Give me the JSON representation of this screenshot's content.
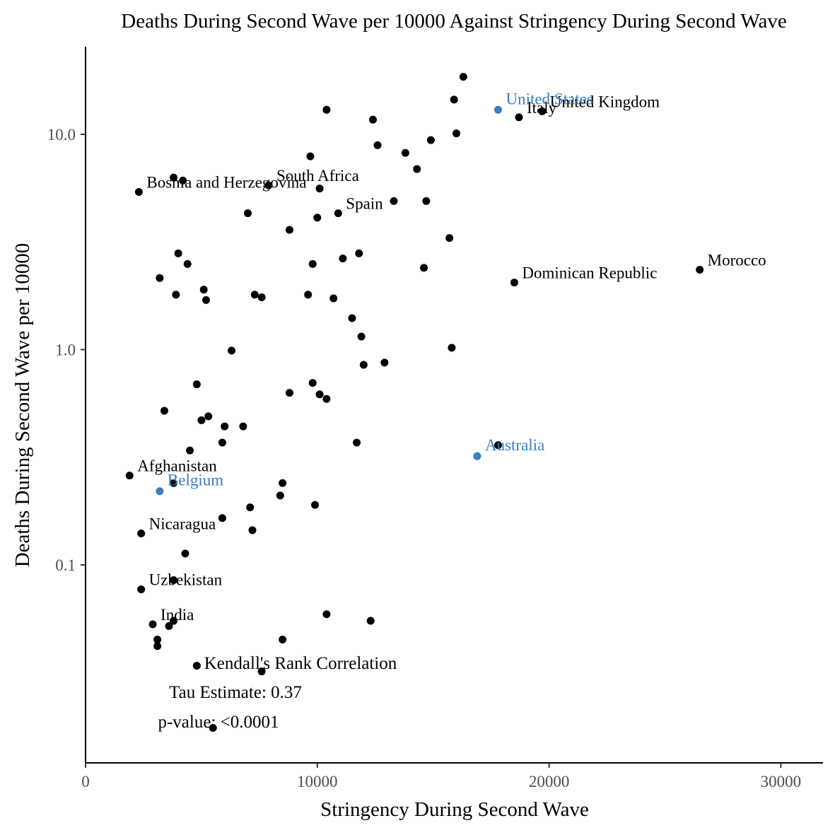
{
  "chart_data": {
    "type": "scatter",
    "title": "Deaths During Second Wave per 10000 Against Stringency During Second Wave",
    "xlabel": "Stringency During Second Wave",
    "ylabel": "Deaths During Second Wave per 10000",
    "x_scale": "linear",
    "y_scale": "log10",
    "xlim": [
      0,
      32000
    ],
    "ylim": [
      0.0145,
      24
    ],
    "x_ticks": [
      0,
      10000,
      20000,
      30000
    ],
    "x_tick_labels": [
      "0",
      "10000",
      "20000",
      "30000"
    ],
    "y_ticks": [
      0.1,
      1.0,
      10.0
    ],
    "y_tick_labels": [
      "0.1",
      "1.0",
      "10.0"
    ],
    "grid": false,
    "colors": {
      "default": "#000000",
      "highlight": "#3a7ebf",
      "axis_text": "#4d4d4d"
    },
    "highlighted_points": [
      {
        "label": "United States",
        "x": 17800,
        "y": 13.0
      },
      {
        "label": "Australia",
        "x": 16900,
        "y": 0.32
      },
      {
        "label": "Belgium",
        "x": 3200,
        "y": 0.22
      }
    ],
    "labeled_points": [
      {
        "label": "United Kingdom",
        "x": 19700,
        "y": 12.8
      },
      {
        "label": "Italy",
        "x": 18700,
        "y": 12.0
      },
      {
        "label": "South Africa",
        "x": 7900,
        "y": 5.8
      },
      {
        "label": "Bosnia and Herzegovina",
        "x": 2300,
        "y": 5.4
      },
      {
        "label": "Spain",
        "x": 10900,
        "y": 4.3
      },
      {
        "label": "Morocco",
        "x": 26500,
        "y": 2.35
      },
      {
        "label": "Dominican Republic",
        "x": 18500,
        "y": 2.05
      },
      {
        "label": "Afghanistan",
        "x": 1900,
        "y": 0.26
      },
      {
        "label": "Nicaragua",
        "x": 2400,
        "y": 0.14
      },
      {
        "label": "Uzbekistan",
        "x": 2400,
        "y": 0.077
      },
      {
        "label": "India",
        "x": 2900,
        "y": 0.053
      }
    ],
    "points": [
      [
        16300,
        18.5
      ],
      [
        15900,
        14.5
      ],
      [
        10400,
        13.0
      ],
      [
        12400,
        11.7
      ],
      [
        16000,
        10.1
      ],
      [
        14900,
        9.4
      ],
      [
        12600,
        8.9
      ],
      [
        13800,
        8.2
      ],
      [
        9700,
        7.9
      ],
      [
        14300,
        6.9
      ],
      [
        3800,
        6.3
      ],
      [
        4200,
        6.1
      ],
      [
        10100,
        5.6
      ],
      [
        13300,
        4.9
      ],
      [
        14700,
        4.9
      ],
      [
        7000,
        4.3
      ],
      [
        10000,
        4.1
      ],
      [
        8800,
        3.6
      ],
      [
        15700,
        3.3
      ],
      [
        4000,
        2.8
      ],
      [
        11800,
        2.8
      ],
      [
        11100,
        2.65
      ],
      [
        4400,
        2.5
      ],
      [
        9800,
        2.5
      ],
      [
        14600,
        2.4
      ],
      [
        3200,
        2.15
      ],
      [
        5100,
        1.9
      ],
      [
        3900,
        1.8
      ],
      [
        7300,
        1.8
      ],
      [
        9600,
        1.8
      ],
      [
        7600,
        1.75
      ],
      [
        10700,
        1.73
      ],
      [
        5200,
        1.7
      ],
      [
        11500,
        1.4
      ],
      [
        11900,
        1.15
      ],
      [
        6300,
        0.99
      ],
      [
        15800,
        1.02
      ],
      [
        12900,
        0.87
      ],
      [
        12000,
        0.85
      ],
      [
        4800,
        0.69
      ],
      [
        9800,
        0.7
      ],
      [
        8800,
        0.63
      ],
      [
        10100,
        0.62
      ],
      [
        10400,
        0.59
      ],
      [
        3400,
        0.52
      ],
      [
        5300,
        0.49
      ],
      [
        5000,
        0.47
      ],
      [
        6000,
        0.44
      ],
      [
        6800,
        0.44
      ],
      [
        5900,
        0.37
      ],
      [
        11700,
        0.37
      ],
      [
        17800,
        0.36
      ],
      [
        4500,
        0.34
      ],
      [
        3800,
        0.24
      ],
      [
        8500,
        0.24
      ],
      [
        8400,
        0.21
      ],
      [
        9900,
        0.19
      ],
      [
        7100,
        0.185
      ],
      [
        5900,
        0.165
      ],
      [
        7200,
        0.145
      ],
      [
        4300,
        0.113
      ],
      [
        3800,
        0.085
      ],
      [
        10400,
        0.059
      ],
      [
        12300,
        0.055
      ],
      [
        3800,
        0.055
      ],
      [
        3600,
        0.052
      ],
      [
        3100,
        0.045
      ],
      [
        3100,
        0.042
      ],
      [
        8500,
        0.045
      ],
      [
        4800,
        0.034
      ],
      [
        7600,
        0.032
      ],
      [
        5500,
        0.0175
      ]
    ],
    "annotations": [
      "Kendall's Rank Correlation",
      "Tau Estimate: 0.37",
      "p-value: <0.0001"
    ]
  }
}
